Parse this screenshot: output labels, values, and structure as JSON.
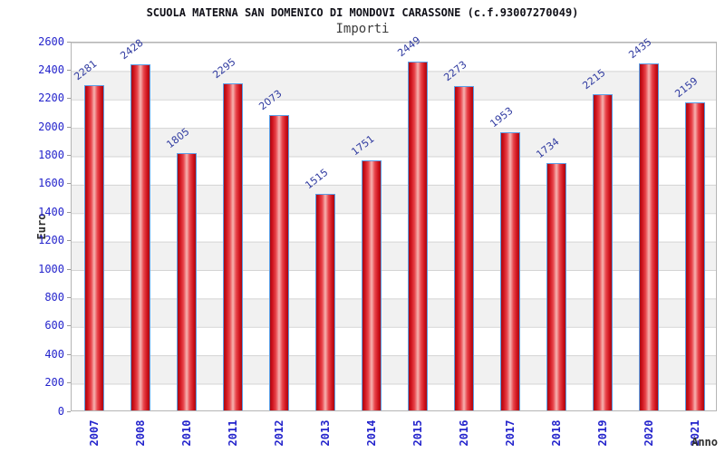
{
  "chart_data": {
    "type": "bar",
    "title": "SCUOLA MATERNA SAN DOMENICO DI MONDOVI CARASSONE (c.f.93007270049)",
    "subtitle": "Importi",
    "xlabel": "Anno",
    "ylabel": "Euro",
    "categories": [
      "2007",
      "2008",
      "2010",
      "2011",
      "2012",
      "2013",
      "2014",
      "2015",
      "2016",
      "2017",
      "2018",
      "2019",
      "2020",
      "2021"
    ],
    "values": [
      2281,
      2428,
      1805,
      2295,
      2073,
      1515,
      1751,
      2449,
      2273,
      1953,
      1734,
      2215,
      2435,
      2159
    ],
    "ylim": [
      0,
      2600
    ],
    "ytick_step": 200,
    "grid": "horizontal-bands",
    "legend": "none",
    "colors": {
      "bar_fill_dark": "#a60c12",
      "bar_fill_mid": "#e8434a",
      "bar_fill_highlight": "#f6b3b0",
      "bar_border": "#5b9ee6",
      "tick_label": "#2424cc",
      "value_label": "#2f3aa0",
      "band_gray": "#f1f1f1",
      "gridline": "#d4d4d4",
      "title_color": "#101018"
    }
  }
}
